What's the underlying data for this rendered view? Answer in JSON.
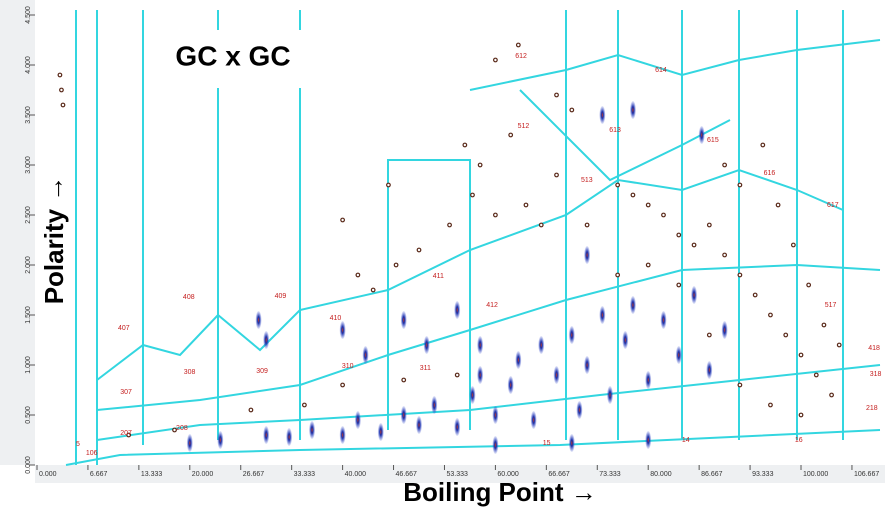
{
  "chart_data": {
    "type": "scatter",
    "title": "GC x GC",
    "x_label": "Boiling Point →",
    "y_label": "Polarity →",
    "xlim": [
      0,
      110.6
    ],
    "ylim": [
      0,
      4.6
    ],
    "xticks": [
      {
        "value": 0,
        "label": "0.000"
      },
      {
        "value": 6.667,
        "label": "6.667"
      },
      {
        "value": 13.333,
        "label": "13.333"
      },
      {
        "value": 20,
        "label": "20.000"
      },
      {
        "value": 26.667,
        "label": "26.667"
      },
      {
        "value": 33.333,
        "label": "33.333"
      },
      {
        "value": 40,
        "label": "40.000"
      },
      {
        "value": 46.667,
        "label": "46.667"
      },
      {
        "value": 53.333,
        "label": "53.333"
      },
      {
        "value": 60,
        "label": "60.000"
      },
      {
        "value": 66.667,
        "label": "66.667"
      },
      {
        "value": 73.333,
        "label": "73.333"
      },
      {
        "value": 80,
        "label": "80.000"
      },
      {
        "value": 86.667,
        "label": "86.667"
      },
      {
        "value": 93.333,
        "label": "93.333"
      },
      {
        "value": 100,
        "label": "100.000"
      },
      {
        "value": 106.667,
        "label": "106.667"
      }
    ],
    "yticks": [
      {
        "value": 0,
        "label": "0.000"
      },
      {
        "value": 0.5,
        "label": "0.500"
      },
      {
        "value": 1,
        "label": "1.000"
      },
      {
        "value": 1.5,
        "label": "1.500"
      },
      {
        "value": 2,
        "label": "2.000"
      },
      {
        "value": 2.5,
        "label": "2.500"
      },
      {
        "value": 3,
        "label": "3.000"
      },
      {
        "value": 3.5,
        "label": "3.500"
      },
      {
        "value": 4,
        "label": "4.000"
      },
      {
        "value": 4.5,
        "label": "4.500"
      }
    ],
    "series": [
      {
        "name": "peaks",
        "color": "#1a2fa8",
        "x": [
          30,
          33,
          36,
          40,
          42,
          45,
          48,
          50,
          52,
          55,
          57,
          58,
          60,
          62,
          63,
          65,
          66,
          68,
          70,
          71,
          72,
          74,
          75,
          77,
          78,
          80,
          82,
          84,
          86,
          88,
          90,
          30,
          29,
          40,
          43,
          48,
          51,
          55,
          58,
          72,
          78,
          74,
          87,
          60,
          70,
          80,
          24,
          20
        ],
        "y": [
          0.3,
          0.28,
          0.35,
          0.3,
          0.45,
          0.33,
          0.5,
          0.4,
          0.6,
          0.38,
          0.7,
          0.9,
          0.5,
          0.8,
          1.05,
          0.45,
          1.2,
          0.9,
          1.3,
          0.55,
          1.0,
          1.5,
          0.7,
          1.25,
          1.6,
          0.85,
          1.45,
          1.1,
          1.7,
          0.95,
          1.35,
          1.25,
          1.45,
          1.35,
          1.1,
          1.45,
          1.2,
          1.55,
          1.2,
          2.1,
          3.55,
          3.5,
          3.3,
          0.2,
          0.22,
          0.25,
          0.25,
          0.22
        ]
      },
      {
        "name": "dots",
        "color": "#5a2a1a",
        "x": [
          3,
          3.2,
          3.4,
          60,
          63,
          68,
          70,
          56,
          58,
          62,
          64,
          66,
          60,
          57,
          54,
          50,
          47,
          44,
          42,
          76,
          78,
          80,
          82,
          84,
          86,
          88,
          90,
          92,
          94,
          96,
          98,
          100,
          102,
          104,
          90,
          92,
          95,
          97,
          99,
          101,
          103,
          105,
          100,
          96,
          92,
          88,
          84,
          80,
          76,
          72,
          68,
          55,
          48,
          40,
          35,
          28,
          46,
          40,
          18,
          12
        ],
        "y": [
          3.9,
          3.75,
          3.6,
          4.05,
          4.2,
          3.7,
          3.55,
          3.2,
          3.0,
          3.3,
          2.6,
          2.4,
          2.5,
          2.7,
          2.4,
          2.15,
          2.0,
          1.75,
          1.9,
          2.8,
          2.7,
          2.6,
          2.5,
          2.3,
          2.2,
          2.4,
          2.1,
          1.9,
          1.7,
          1.5,
          1.3,
          1.1,
          0.9,
          0.7,
          3.0,
          2.8,
          3.2,
          2.6,
          2.2,
          1.8,
          1.4,
          1.2,
          0.5,
          0.6,
          0.8,
          1.3,
          1.8,
          2.0,
          1.9,
          2.4,
          2.9,
          0.9,
          0.85,
          0.8,
          0.6,
          0.55,
          2.8,
          2.45,
          0.35,
          0.3
        ]
      }
    ],
    "annotations": [
      {
        "text": "407",
        "x": 10.6,
        "y": 1.37
      },
      {
        "text": "307",
        "x": 10.9,
        "y": 0.73
      },
      {
        "text": "408",
        "x": 19.1,
        "y": 1.68
      },
      {
        "text": "308",
        "x": 19.2,
        "y": 0.93
      },
      {
        "text": "409",
        "x": 31.1,
        "y": 1.69
      },
      {
        "text": "309",
        "x": 28.7,
        "y": 0.94
      },
      {
        "text": "410",
        "x": 38.3,
        "y": 1.47
      },
      {
        "text": "310",
        "x": 39.9,
        "y": 0.99
      },
      {
        "text": "411",
        "x": 51.8,
        "y": 1.89
      },
      {
        "text": "311",
        "x": 50.1,
        "y": 0.97
      },
      {
        "text": "412",
        "x": 58.8,
        "y": 1.6
      },
      {
        "text": "512",
        "x": 62.9,
        "y": 3.39
      },
      {
        "text": "513",
        "x": 71.2,
        "y": 2.85
      },
      {
        "text": "613",
        "x": 74.9,
        "y": 3.35
      },
      {
        "text": "614",
        "x": 80.9,
        "y": 3.95
      },
      {
        "text": "615",
        "x": 87.7,
        "y": 3.25
      },
      {
        "text": "616",
        "x": 95.1,
        "y": 2.92
      },
      {
        "text": "617",
        "x": 103.4,
        "y": 2.6
      },
      {
        "text": "517",
        "x": 103.1,
        "y": 1.6
      },
      {
        "text": "418",
        "x": 108.8,
        "y": 1.17
      },
      {
        "text": "318",
        "x": 109,
        "y": 0.91
      },
      {
        "text": "218",
        "x": 108.5,
        "y": 0.57
      },
      {
        "text": "207",
        "x": 10.9,
        "y": 0.32
      },
      {
        "text": "106",
        "x": 6.4,
        "y": 0.12
      },
      {
        "text": "208",
        "x": 18.2,
        "y": 0.37
      },
      {
        "text": "5",
        "x": 5.1,
        "y": 0.21
      },
      {
        "text": "15",
        "x": 66.2,
        "y": 0.22
      },
      {
        "text": "14",
        "x": 84.4,
        "y": 0.25
      },
      {
        "text": "16",
        "x": 99.2,
        "y": 0.25
      },
      {
        "text": "612",
        "x": 62.6,
        "y": 4.09
      }
    ]
  }
}
